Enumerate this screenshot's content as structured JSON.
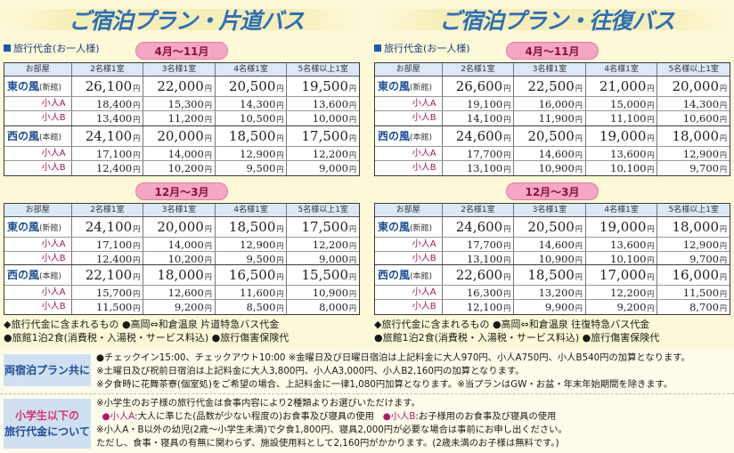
{
  "panels": [
    {
      "title": "ご宿泊プラン・片道バス",
      "fee_label": "旅行代金(お一人様)",
      "seasons": [
        {
          "label": "4月〜11月",
          "headers": [
            "お部屋",
            "2名様1室",
            "3名様1室",
            "4名様1室",
            "5名様以上1室"
          ],
          "groups": [
            {
              "name": "東の風",
              "sub": "(新館)",
              "adult": [
                "26,100",
                "22,000",
                "20,500",
                "19,500"
              ],
              "children": [
                {
                  "label": "小人A",
                  "values": [
                    "18,400",
                    "15,300",
                    "14,300",
                    "13,600"
                  ]
                },
                {
                  "label": "小人B",
                  "values": [
                    "13,400",
                    "11,200",
                    "10,500",
                    "10,000"
                  ]
                }
              ]
            },
            {
              "name": "西の風",
              "sub": "(本館)",
              "adult": [
                "24,100",
                "20,000",
                "18,500",
                "17,500"
              ],
              "children": [
                {
                  "label": "小人A",
                  "values": [
                    "17,100",
                    "14,000",
                    "12,900",
                    "12,200"
                  ]
                },
                {
                  "label": "小人B",
                  "values": [
                    "12,400",
                    "10,200",
                    "9,500",
                    "9,000"
                  ]
                }
              ]
            }
          ]
        },
        {
          "label": "12月〜3月",
          "headers": [
            "お部屋",
            "2名様1室",
            "3名様1室",
            "4名様1室",
            "5名様以上1室"
          ],
          "groups": [
            {
              "name": "東の風",
              "sub": "(新館)",
              "adult": [
                "24,100",
                "20,000",
                "18,500",
                "17,500"
              ],
              "children": [
                {
                  "label": "小人A",
                  "values": [
                    "17,100",
                    "14,000",
                    "12,900",
                    "12,200"
                  ]
                },
                {
                  "label": "小人B",
                  "values": [
                    "12,400",
                    "10,200",
                    "9,500",
                    "9,000"
                  ]
                }
              ]
            },
            {
              "name": "西の風",
              "sub": "(本館)",
              "adult": [
                "22,100",
                "18,000",
                "16,500",
                "15,500"
              ],
              "children": [
                {
                  "label": "小人A",
                  "values": [
                    "15,700",
                    "12,600",
                    "11,600",
                    "10,900"
                  ]
                },
                {
                  "label": "小人B",
                  "values": [
                    "11,500",
                    "9,200",
                    "8,500",
                    "8,000"
                  ]
                }
              ]
            }
          ]
        }
      ],
      "included_line1": "◆旅行代金に含まれるもの ●高岡⇔和倉温泉 片道特急バス代金",
      "included_line2": "●旅館1泊2食(消費税・入湯税・サービス料込) ●旅行傷害保険代"
    },
    {
      "title": "ご宿泊プラン・往復バス",
      "fee_label": "旅行代金(お一人様)",
      "seasons": [
        {
          "label": "4月〜11月",
          "headers": [
            "お部屋",
            "2名様1室",
            "3名様1室",
            "4名様1室",
            "5名様以上1室"
          ],
          "groups": [
            {
              "name": "東の風",
              "sub": "(新館)",
              "adult": [
                "26,600",
                "22,500",
                "21,000",
                "20,000"
              ],
              "children": [
                {
                  "label": "小人A",
                  "values": [
                    "19,100",
                    "16,000",
                    "15,000",
                    "14,300"
                  ]
                },
                {
                  "label": "小人B",
                  "values": [
                    "14,100",
                    "11,900",
                    "11,100",
                    "10,600"
                  ]
                }
              ]
            },
            {
              "name": "西の風",
              "sub": "(本館)",
              "adult": [
                "24,600",
                "20,500",
                "19,000",
                "18,000"
              ],
              "children": [
                {
                  "label": "小人A",
                  "values": [
                    "17,700",
                    "14,600",
                    "13,600",
                    "12,900"
                  ]
                },
                {
                  "label": "小人B",
                  "values": [
                    "13,100",
                    "10,900",
                    "10,100",
                    "9,700"
                  ]
                }
              ]
            }
          ]
        },
        {
          "label": "12月〜3月",
          "headers": [
            "お部屋",
            "2名様1室",
            "3名様1室",
            "4名様1室",
            "5名様以上1室"
          ],
          "groups": [
            {
              "name": "東の風",
              "sub": "(新館)",
              "adult": [
                "24,600",
                "20,500",
                "19,000",
                "18,000"
              ],
              "children": [
                {
                  "label": "小人A",
                  "values": [
                    "17,700",
                    "14,600",
                    "13,600",
                    "12,900"
                  ]
                },
                {
                  "label": "小人B",
                  "values": [
                    "13,100",
                    "10,900",
                    "10,100",
                    "9,700"
                  ]
                }
              ]
            },
            {
              "name": "西の風",
              "sub": "(本館)",
              "adult": [
                "22,600",
                "18,500",
                "17,000",
                "16,000"
              ],
              "children": [
                {
                  "label": "小人A",
                  "values": [
                    "16,300",
                    "13,200",
                    "12,200",
                    "11,500"
                  ]
                },
                {
                  "label": "小人B",
                  "values": [
                    "12,100",
                    "9,900",
                    "9,200",
                    "8,700"
                  ]
                }
              ]
            }
          ]
        }
      ],
      "included_line1": "◆旅行代金に含まれるもの ●高岡⇔和倉温泉 往復特急バス代金",
      "included_line2": "●旅館1泊2食(消費税・入湯税・サービス料込) ●旅行傷害保険代"
    }
  ],
  "yen": "円",
  "common": {
    "label": "両宿泊プラン共に",
    "lines": [
      "●チェックイン15:00、チェックアウト10:00 ※金曜日及び日曜日宿泊は上記料金に大人970円、小人A750円、小人B540円の加算となります。",
      "※土曜日及び祝前日宿泊は上記料金に大人3,800円、小人A3,000円、小人B2,160円の加算となります。",
      "※夕食時に花舞茶寮(個室処)をご希望の場合、上記料金に一律1,080円加算となります。※当プランはGW・お盆・年末年始期間を除きます。"
    ]
  },
  "children_note": {
    "label_line1": "小学生以下の",
    "label_line2": "旅行代金について",
    "line1": "※小学生のお子様の旅行代金は食事内容により2種類よりお選びいただけます。",
    "a_mark": "●小人A",
    "a_text": ":大人に準じた(品数が少ない程度の)お食事及び寝具の使用",
    "b_mark": "●小人B",
    "b_text": ":お子様用のお食事及び寝具の使用",
    "line3": "※小人A・B以外の幼児(2歳〜小学生未満)で夕食1,800円、寝具2,000円が必要な場合は事前にお申し出ください。",
    "line4": "ただし、食事・寝具の有無に関わらず、施設使用料として2,160円がかかります。(2歳未満のお子様は無料です。)"
  }
}
